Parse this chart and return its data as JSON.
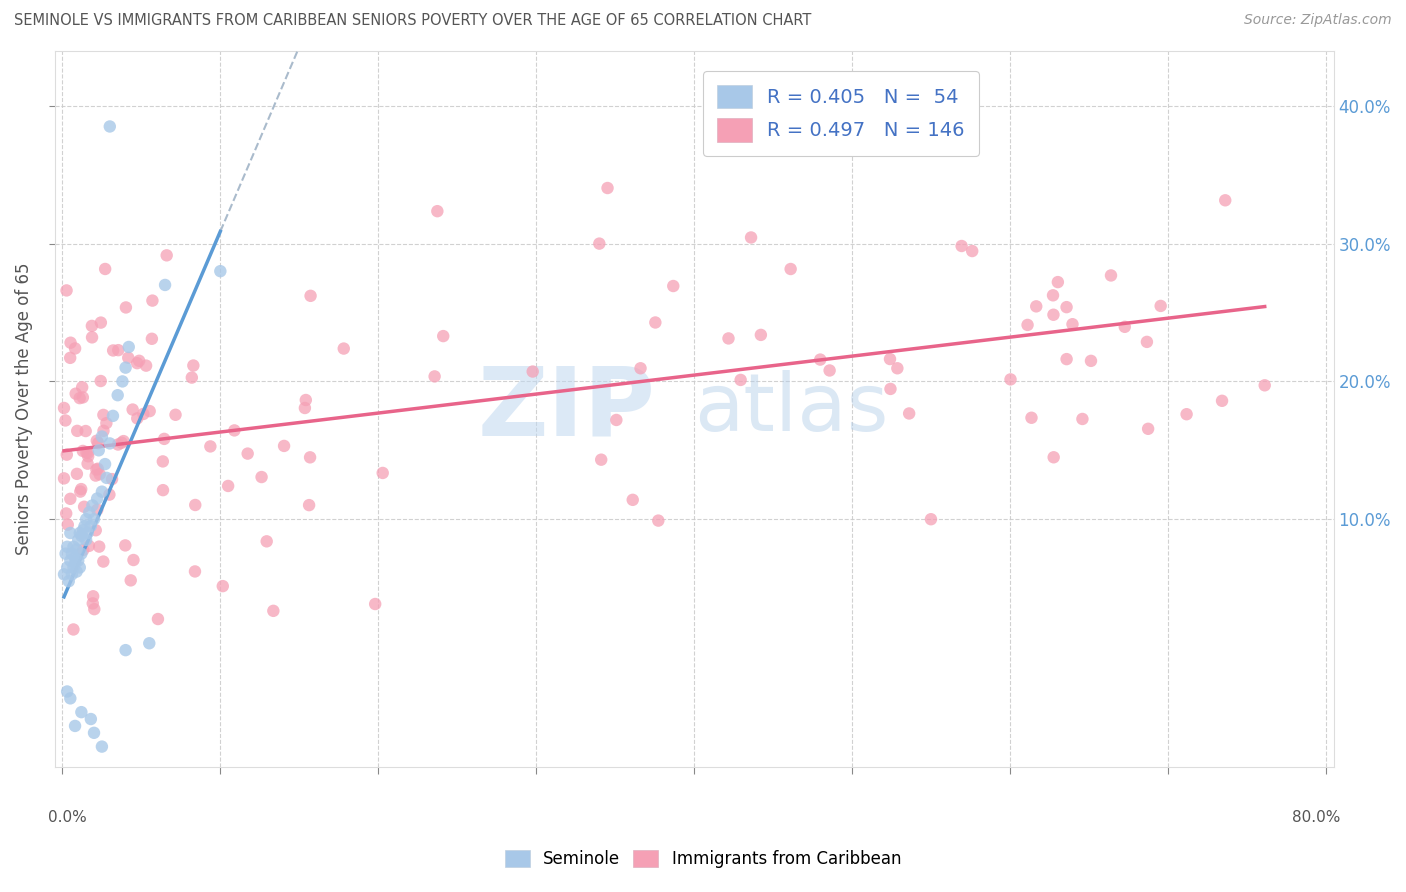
{
  "title": "SEMINOLE VS IMMIGRANTS FROM CARIBBEAN SENIORS POVERTY OVER THE AGE OF 65 CORRELATION CHART",
  "source": "Source: ZipAtlas.com",
  "ylabel": "Seniors Poverty Over the Age of 65",
  "xlim": [
    -0.005,
    0.805
  ],
  "ylim": [
    -0.08,
    0.44
  ],
  "xticks": [
    0.0,
    0.1,
    0.2,
    0.3,
    0.4,
    0.5,
    0.6,
    0.7,
    0.8
  ],
  "yticks": [
    0.1,
    0.2,
    0.3,
    0.4
  ],
  "ytick_labels": [
    "10.0%",
    "20.0%",
    "30.0%",
    "40.0%"
  ],
  "xtick_labels": [
    "",
    "",
    "",
    "",
    "",
    "",
    "",
    "",
    ""
  ],
  "x_edge_labels": [
    "0.0%",
    "80.0%"
  ],
  "seminole_color": "#a8c8e8",
  "caribbean_color": "#f5a0b5",
  "seminole_line_color": "#5b9bd5",
  "caribbean_line_color": "#e8648a",
  "dashed_line_color": "#aabbcc",
  "R_seminole": 0.405,
  "N_seminole": 54,
  "R_caribbean": 0.497,
  "N_caribbean": 146,
  "watermark_zip": "ZIP",
  "watermark_atlas": "atlas",
  "background_color": "#ffffff",
  "grid_color": "#cccccc",
  "tick_color": "#5b9bd5",
  "legend_label_seminole": "Seminole",
  "legend_label_caribbean": "Immigrants from Caribbean"
}
